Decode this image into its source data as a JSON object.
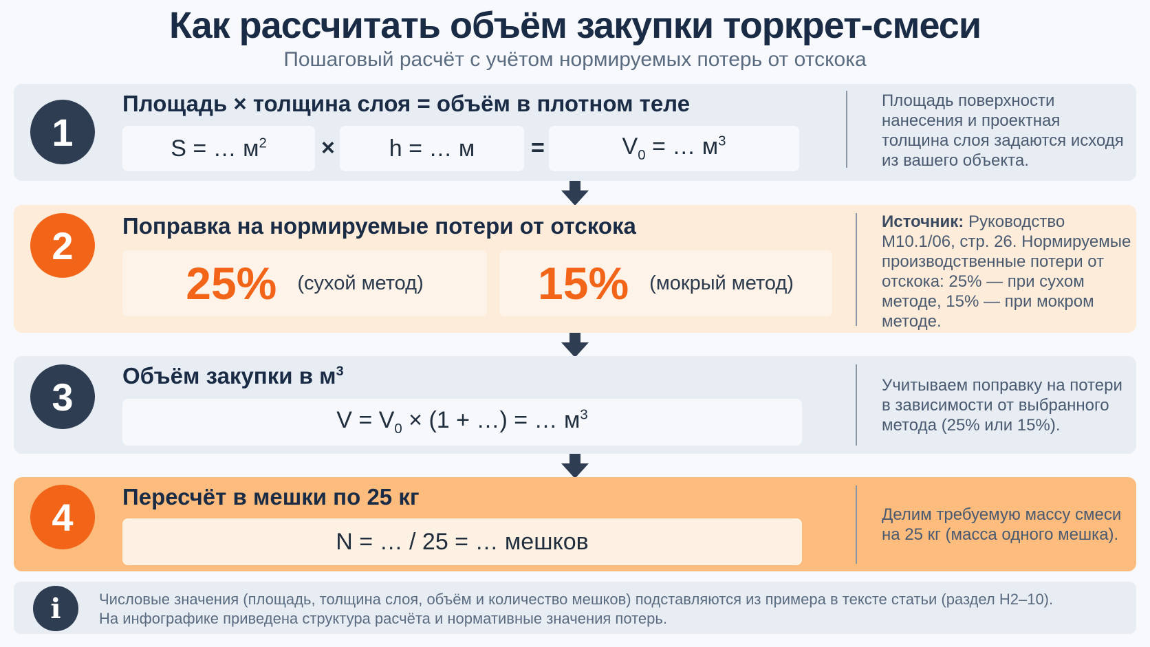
{
  "title": "Как рассчитать объём закупки торкрет-смеси",
  "subtitle": "Пошаговый расчёт с учётом нормируемых потерь от отскока",
  "colors": {
    "dark": "#2f3d52",
    "orange": "#f26418",
    "step_light_bg": "#e8edf4",
    "step2_bg": "#fdecd9",
    "step4_bg": "#fbbc7e"
  },
  "steps": [
    {
      "number": "1",
      "heading": "Площадь × толщина слоя = объём в плотном теле",
      "formula": {
        "area_prefix": "S = … м",
        "area_exp": "2",
        "times": "×",
        "thickness": "h = … м",
        "equals": "=",
        "volume_prefix": "V",
        "volume_sub": "0",
        "volume_mid": " = … м",
        "volume_exp": "3"
      },
      "note": "Площадь поверхности нанесения и проектная толщина слоя задаются исходя из вашего объекта."
    },
    {
      "number": "2",
      "heading": "Поправка на нормируемые потери от отскока",
      "dry": {
        "value": "25%",
        "label": "(сухой метод)"
      },
      "wet": {
        "value": "15%",
        "label": "(мокрый метод)"
      },
      "note_source_label": "Источник:",
      "note": " Руководство М10.1/06, стр. 26. Нормируемые производственные потери от отскока: 25% — при сухом методе, 15% — при мокром методе."
    },
    {
      "number": "3",
      "heading_prefix": "Объём закупки в м",
      "heading_exp": "3",
      "formula": {
        "part1": "V = V",
        "sub": "0",
        "part2": " × (1 + …) = … м",
        "exp": "3"
      },
      "note": "Учитываем поправку на потери в зависимости от выбранного метода (25% или 15%)."
    },
    {
      "number": "4",
      "heading": "Пересчёт в мешки по 25 кг",
      "formula": "N = … / 25 = … мешков",
      "note": "Делим требуемую массу смеси на 25 кг (масса одного мешка)."
    }
  ],
  "info": {
    "icon": "info-icon",
    "line1": "Числовые значения (площадь, толщина слоя, объём и количество мешков) подставляются из примера в тексте статьи (раздел Н2–10).",
    "line2": "На инфографике приведена структура расчёта и нормативные значения потерь."
  }
}
